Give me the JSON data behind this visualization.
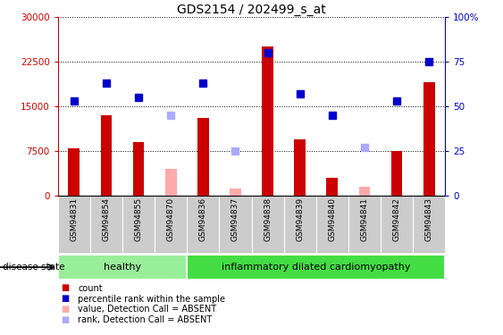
{
  "title": "GDS2154 / 202499_s_at",
  "samples": [
    "GSM94831",
    "GSM94854",
    "GSM94855",
    "GSM94870",
    "GSM94836",
    "GSM94837",
    "GSM94838",
    "GSM94839",
    "GSM94840",
    "GSM94841",
    "GSM94842",
    "GSM94843"
  ],
  "healthy_count": 4,
  "count_values": [
    8000,
    13500,
    9000,
    null,
    13000,
    null,
    25000,
    9500,
    3000,
    null,
    7500,
    19000
  ],
  "rank_values": [
    53,
    63,
    55,
    null,
    63,
    null,
    80,
    57,
    45,
    null,
    53,
    75
  ],
  "absent_count": [
    null,
    null,
    null,
    4500,
    null,
    1200,
    null,
    null,
    null,
    1500,
    null,
    null
  ],
  "absent_rank": [
    null,
    null,
    null,
    45,
    null,
    25,
    null,
    null,
    null,
    27,
    null,
    null
  ],
  "count_color": "#cc0000",
  "rank_color": "#0000cc",
  "absent_count_color": "#ffaaaa",
  "absent_rank_color": "#aaaaff",
  "ylim_left": [
    0,
    30000
  ],
  "ylim_right": [
    0,
    100
  ],
  "yticks_left": [
    0,
    7500,
    15000,
    22500,
    30000
  ],
  "yticks_right": [
    0,
    25,
    50,
    75,
    100
  ],
  "ytick_labels_right": [
    "0",
    "25",
    "50",
    "75",
    "100%"
  ],
  "healthy_label": "healthy",
  "disease_label": "inflammatory dilated cardiomyopathy",
  "disease_state_label": "disease state",
  "legend_entries": [
    "count",
    "percentile rank within the sample",
    "value, Detection Call = ABSENT",
    "rank, Detection Call = ABSENT"
  ],
  "legend_colors": [
    "#cc0000",
    "#0000cc",
    "#ffaaaa",
    "#aaaaff"
  ],
  "healthy_bg": "#99ee99",
  "disease_bg": "#44dd44",
  "xlabel_bg": "#cccccc",
  "bar_width": 0.35,
  "marker_size": 6
}
